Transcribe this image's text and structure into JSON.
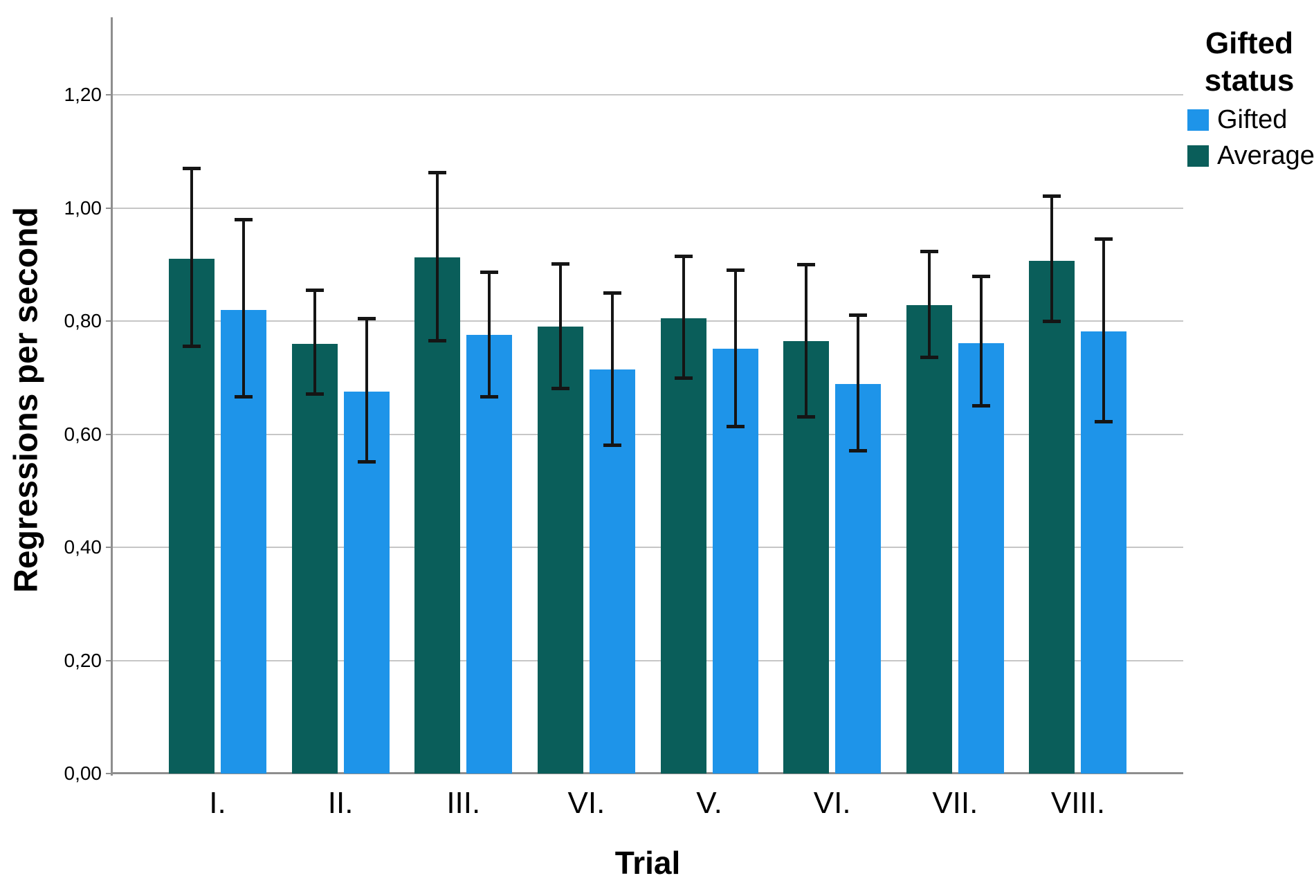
{
  "chart_data": {
    "type": "bar",
    "title": "",
    "xlabel": "Trial",
    "ylabel": "Regressions per second",
    "categories": [
      "I.",
      "II.",
      "III.",
      "VI.",
      "V.",
      "VI.",
      "VII.",
      "VIII."
    ],
    "series": [
      {
        "name": "Average",
        "color": "#0a5e5a",
        "values": [
          0.91,
          0.76,
          0.913,
          0.79,
          0.805,
          0.764,
          0.828,
          0.907
        ],
        "ci_low": [
          0.755,
          0.67,
          0.765,
          0.68,
          0.698,
          0.63,
          0.735,
          0.799
        ],
        "ci_high": [
          1.07,
          0.855,
          1.063,
          0.902,
          0.915,
          0.9,
          0.924,
          1.021
        ]
      },
      {
        "name": "Gifted",
        "color": "#1e94e9",
        "values": [
          0.82,
          0.675,
          0.776,
          0.714,
          0.751,
          0.689,
          0.761,
          0.782
        ],
        "ci_low": [
          0.665,
          0.55,
          0.665,
          0.58,
          0.613,
          0.57,
          0.649,
          0.621
        ],
        "ci_high": [
          0.98,
          0.805,
          0.887,
          0.85,
          0.891,
          0.811,
          0.879,
          0.945
        ]
      }
    ],
    "error_bars": true,
    "grid": true,
    "y_ticks": [
      "0,00",
      "0,20",
      "0,40",
      "0,60",
      "0,80",
      "1,00",
      "1,20"
    ],
    "y_tick_values": [
      0,
      0.2,
      0.4,
      0.6,
      0.8,
      1.0,
      1.2
    ],
    "ylim": [
      0,
      1.337
    ],
    "legend": {
      "title": "Gifted status",
      "position": "top-right",
      "entries": [
        {
          "label": "Gifted",
          "color": "#1e94e9"
        },
        {
          "label": "Average",
          "color": "#0a5e5a"
        }
      ]
    },
    "colors": {
      "gridline": "#c6c6c6",
      "axis": "#8e8e8e",
      "error_bar": "#151515",
      "background": "#ffffff"
    }
  }
}
